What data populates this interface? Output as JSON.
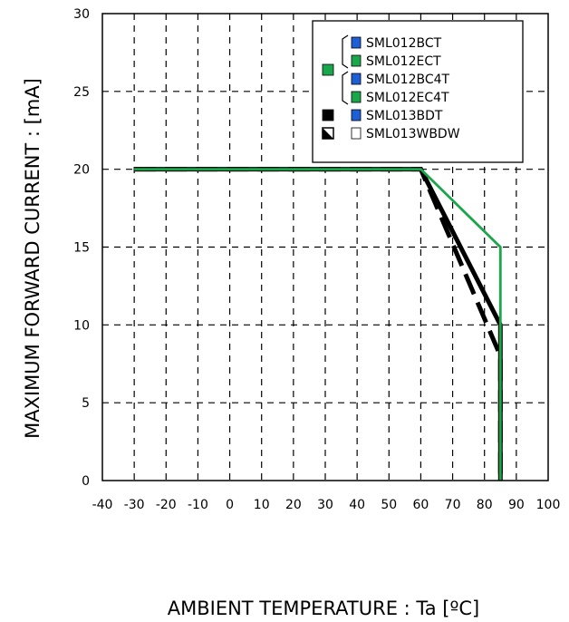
{
  "chart_data": {
    "type": "line",
    "xlabel": "AMBIENT TEMPERATURE : Ta [ºC]",
    "ylabel": "MAXIMUM FORWARD CURRENT :  [mA]",
    "xlim": [
      -40,
      100
    ],
    "ylim": [
      0,
      30
    ],
    "x_ticks": [
      "-40",
      "-30",
      "-20",
      "-10",
      "0",
      "10",
      "20",
      "30",
      "40",
      "50",
      "60",
      "70",
      "80",
      "90",
      "100"
    ],
    "y_ticks": [
      "0",
      "5",
      "10",
      "15",
      "20",
      "25",
      "30"
    ],
    "grid": true,
    "legend_position": "top-right",
    "series": [
      {
        "key": "green",
        "color": "#1aa64a",
        "style": "solid",
        "points": [
          [
            -30,
            20
          ],
          [
            60,
            20
          ],
          [
            85,
            15
          ],
          [
            85,
            0
          ]
        ]
      },
      {
        "key": "black",
        "color": "#000000",
        "style": "solid",
        "points": [
          [
            -30,
            20
          ],
          [
            60,
            20
          ],
          [
            85,
            10
          ],
          [
            85,
            0
          ]
        ]
      },
      {
        "key": "half",
        "color": "#000000",
        "style": "dashed",
        "points": [
          [
            -30,
            20
          ],
          [
            60,
            20
          ],
          [
            85,
            8
          ],
          [
            85,
            0
          ]
        ]
      }
    ],
    "legend": {
      "entries": [
        {
          "label": "SML012BCT",
          "color": "#1f5fd6"
        },
        {
          "label": "SML012ECT",
          "color": "#1aa64a"
        },
        {
          "label": "SML012BC4T",
          "color": "#1f5fd6"
        },
        {
          "label": "SML012EC4T",
          "color": "#1aa64a"
        },
        {
          "label": "SML013BDT",
          "color": "#1f5fd6"
        },
        {
          "label": "SML013WBDW",
          "color": "#ffffff"
        }
      ],
      "group_markers": [
        {
          "type": "solid",
          "color": "#1aa64a",
          "rows": [
            0,
            3
          ]
        },
        {
          "type": "solid",
          "color": "#000000",
          "rows": [
            4,
            4
          ]
        },
        {
          "type": "half",
          "color": "#000000",
          "rows": [
            5,
            5
          ]
        }
      ]
    }
  }
}
